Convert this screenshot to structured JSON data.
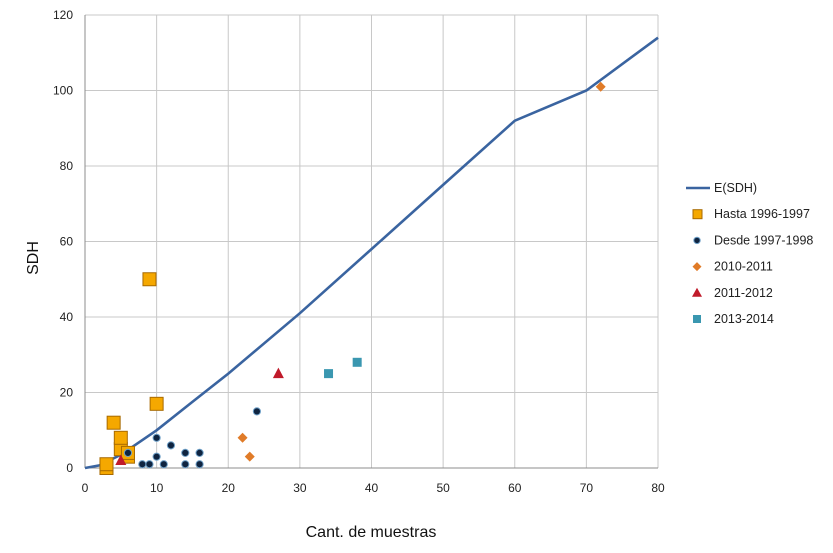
{
  "chart_data": {
    "type": "scatter",
    "title": "",
    "xlabel": "Cant. de muestras",
    "ylabel": "SDH",
    "xlim": [
      0,
      80
    ],
    "ylim": [
      0,
      120
    ],
    "x_ticks": [
      0,
      10,
      20,
      30,
      40,
      50,
      60,
      70,
      80
    ],
    "y_ticks": [
      0,
      20,
      40,
      60,
      80,
      100,
      120
    ],
    "grid": true,
    "legend_position": "right",
    "series": [
      {
        "name": "E(SDH)",
        "kind": "line",
        "color": "#3a64a0",
        "points": [
          [
            0,
            0
          ],
          [
            2,
            0.7
          ],
          [
            5,
            3.5
          ],
          [
            10,
            10
          ],
          [
            15,
            17.5
          ],
          [
            20,
            25
          ],
          [
            30,
            41
          ],
          [
            40,
            58
          ],
          [
            50,
            75
          ],
          [
            60,
            92
          ],
          [
            70,
            100
          ],
          [
            80,
            114
          ]
        ]
      },
      {
        "name": "Hasta 1996-1997",
        "kind": "scatter",
        "marker": "square",
        "color": "#f5a800",
        "stroke": "#a86a00",
        "points": [
          [
            3,
            0
          ],
          [
            3,
            1
          ],
          [
            4,
            12
          ],
          [
            5,
            5
          ],
          [
            5,
            8
          ],
          [
            6,
            3
          ],
          [
            6,
            4
          ],
          [
            9,
            50
          ],
          [
            10,
            17
          ]
        ]
      },
      {
        "name": "Desde 1997-1998",
        "kind": "scatter",
        "marker": "circle",
        "color": "#0f2440",
        "stroke": "#6fa0c8",
        "points": [
          [
            6,
            4
          ],
          [
            8,
            1
          ],
          [
            9,
            1
          ],
          [
            10,
            3
          ],
          [
            10,
            8
          ],
          [
            11,
            1
          ],
          [
            12,
            6
          ],
          [
            14,
            1
          ],
          [
            14,
            4
          ],
          [
            16,
            1
          ],
          [
            16,
            4
          ],
          [
            24,
            15
          ]
        ]
      },
      {
        "name": "2010-2011",
        "kind": "scatter",
        "marker": "diamond",
        "color": "#e07b28",
        "points": [
          [
            22,
            8
          ],
          [
            23,
            3
          ],
          [
            72,
            101
          ]
        ]
      },
      {
        "name": "2011-2012",
        "kind": "scatter",
        "marker": "triangle",
        "color": "#c01a2a",
        "points": [
          [
            5,
            2
          ],
          [
            27,
            25
          ]
        ]
      },
      {
        "name": "2013-2014",
        "kind": "scatter",
        "marker": "square-small",
        "color": "#3a97b0",
        "points": [
          [
            34,
            25
          ],
          [
            38,
            28
          ]
        ]
      }
    ]
  }
}
